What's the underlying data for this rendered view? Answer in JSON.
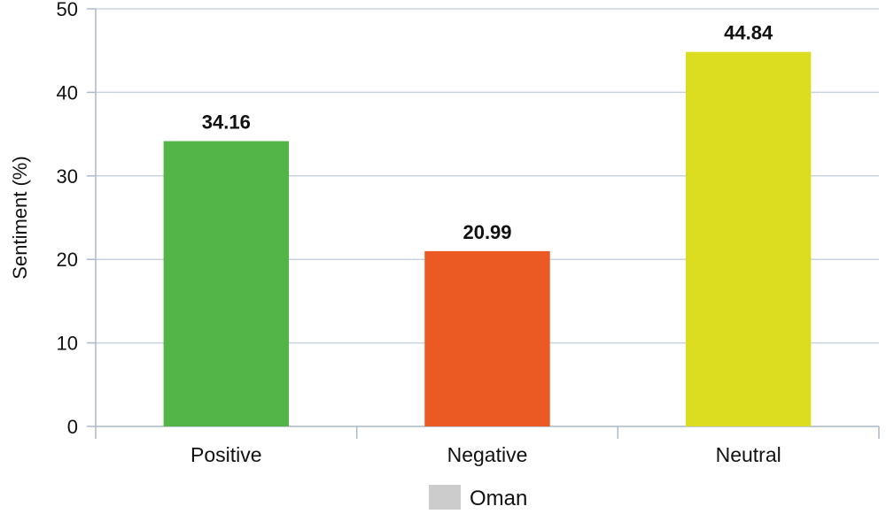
{
  "chart_data": {
    "type": "bar",
    "categories": [
      "Positive",
      "Negative",
      "Neutral"
    ],
    "series": [
      {
        "name": "Oman",
        "values": [
          34.16,
          20.99,
          44.84
        ],
        "value_labels": [
          "34.16",
          "20.99",
          "44.84"
        ]
      }
    ],
    "bar_colors": [
      "#53b548",
      "#eb5a23",
      "#dcdc20"
    ],
    "legend_color": "#cccccc",
    "xlabel": "",
    "ylabel": "Sentiment (%)",
    "ylim": [
      0,
      50
    ],
    "yticks": [
      "0",
      "10",
      "20",
      "30",
      "40",
      "50"
    ],
    "grid": true,
    "legend_position": "bottom"
  }
}
